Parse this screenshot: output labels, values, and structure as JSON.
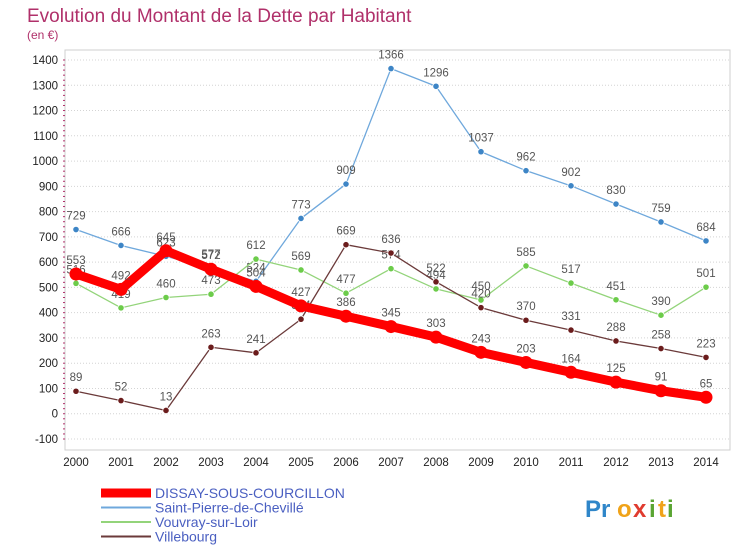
{
  "colors": {
    "title": "#b0306a",
    "axis_text": "#222222",
    "series_label": "#555555",
    "legend_text": "#4a5fc1",
    "grid": "#d4d4d4"
  },
  "logo": {
    "text": "Proxiti"
  },
  "chart_data": {
    "type": "line",
    "title": "Evolution du Montant de la Dette par Habitant",
    "subtitle": "(en €)",
    "xlabel": "",
    "ylabel": "",
    "ylim": [
      -100,
      1400
    ],
    "yticks": [
      -100,
      0,
      100,
      200,
      300,
      400,
      500,
      600,
      700,
      800,
      900,
      1000,
      1100,
      1200,
      1300,
      1400
    ],
    "ytick_labels": [
      "-100",
      "0",
      "100",
      "200",
      "300",
      "400",
      "500",
      "600",
      "700",
      "800",
      "900",
      "1000",
      "1100",
      "1200",
      "1300",
      "1400"
    ],
    "grid": true,
    "legend_position": "bottom-left",
    "categories": [
      "2000",
      "2001",
      "2002",
      "2003",
      "2004",
      "2005",
      "2006",
      "2007",
      "2008",
      "2009",
      "2010",
      "2011",
      "2012",
      "2013",
      "2014"
    ],
    "series": [
      {
        "name": "DISSAY-SOUS-COURCILLON",
        "color": "#ff0000",
        "marker_color": "#ff0000",
        "emphasis": true,
        "values": [
          553,
          492,
          645,
          572,
          504,
          427,
          386,
          345,
          303,
          243,
          203,
          164,
          125,
          91,
          65
        ],
        "labels": [
          "553",
          "492",
          "645",
          "572",
          "504",
          "427",
          "386",
          "345",
          "303",
          "243",
          "203",
          "164",
          "125",
          "91",
          "65"
        ]
      },
      {
        "name": "Saint-Pierre-de-Chevillé",
        "color": "#6fa8dc",
        "marker_color": "#3d85c6",
        "emphasis": false,
        "values": [
          729,
          666,
          623,
          577,
          524,
          773,
          909,
          1366,
          1296,
          1037,
          962,
          902,
          830,
          759,
          684
        ],
        "labels": [
          "729",
          "666",
          "623",
          "577",
          "524",
          "773",
          "909",
          "1366",
          "1296",
          "1037",
          "962",
          "902",
          "830",
          "759",
          "684"
        ]
      },
      {
        "name": "Vouvray-sur-Loir",
        "color": "#93d47a",
        "marker_color": "#6ccc4a",
        "emphasis": false,
        "values": [
          516,
          419,
          460,
          473,
          612,
          569,
          477,
          574,
          494,
          450,
          585,
          517,
          451,
          390,
          501
        ],
        "labels": [
          "516",
          "419",
          "460",
          "473",
          "612",
          "569",
          "477",
          "574",
          "494",
          "450",
          "585",
          "517",
          "451",
          "390",
          "501"
        ]
      },
      {
        "name": "Villebourg",
        "color": "#6b3a3a",
        "marker_color": "#6b1c1c",
        "emphasis": false,
        "values": [
          89,
          52,
          13,
          263,
          241,
          374,
          669,
          636,
          522,
          420,
          370,
          331,
          288,
          258,
          223
        ],
        "labels": [
          "89",
          "52",
          "13",
          "263",
          "241",
          "374",
          "669",
          "636",
          "522",
          "420",
          "370",
          "331",
          "288",
          "258",
          "223"
        ]
      }
    ]
  }
}
